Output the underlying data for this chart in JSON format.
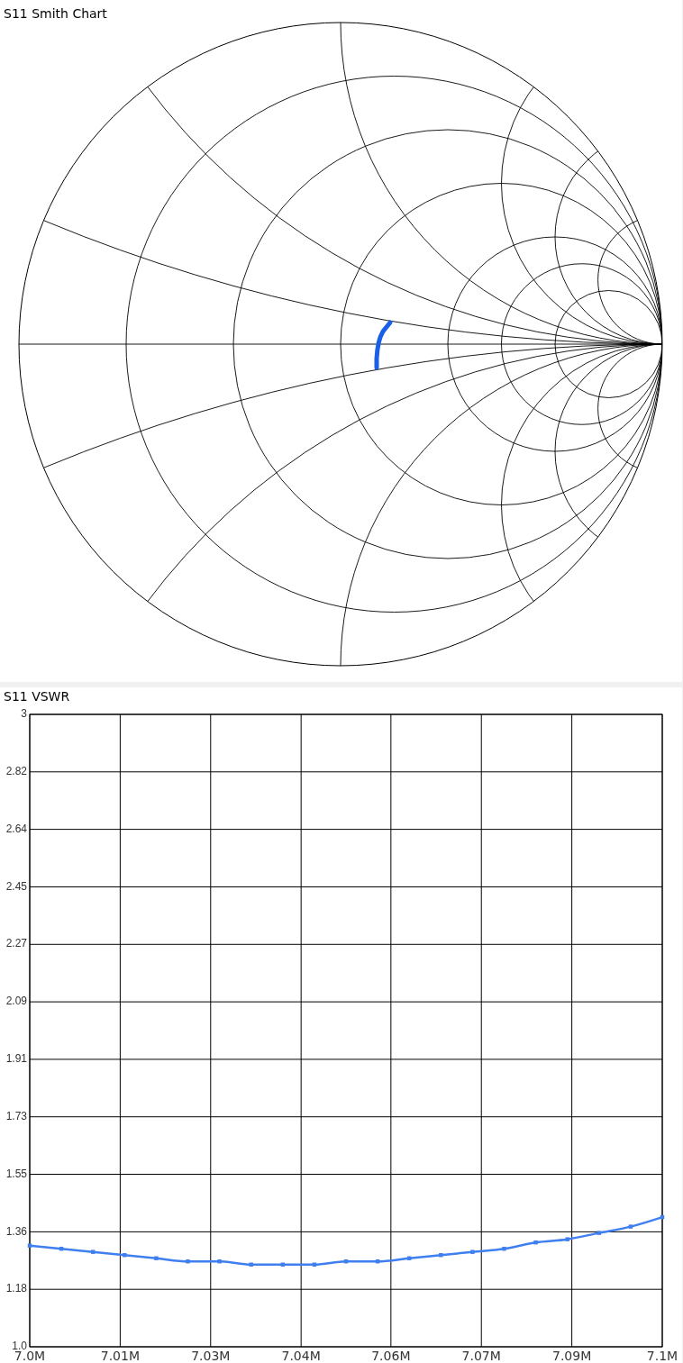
{
  "chart_data": [
    {
      "type": "other",
      "title": "S11 Smith Chart"
    },
    {
      "type": "line",
      "title": "S11 VSWR",
      "x": [
        7.0,
        7.005,
        7.01,
        7.015,
        7.02,
        7.025,
        7.03,
        7.035,
        7.04,
        7.045,
        7.05,
        7.055,
        7.06,
        7.065,
        7.07,
        7.075,
        7.08,
        7.085,
        7.09,
        7.095,
        7.1
      ],
      "series": [
        {
          "color": "#3f7fef",
          "values": [
            1.32,
            1.31,
            1.3,
            1.29,
            1.28,
            1.27,
            1.27,
            1.26,
            1.26,
            1.26,
            1.27,
            1.27,
            1.28,
            1.29,
            1.3,
            1.31,
            1.33,
            1.34,
            1.36,
            1.38,
            1.41
          ]
        }
      ],
      "xlim": [
        7.0,
        7.1
      ],
      "xticks": [
        {
          "value": 7.0,
          "label": "7.0M"
        },
        {
          "value": 7.0143,
          "label": "7.01M"
        },
        {
          "value": 7.0286,
          "label": "7.03M"
        },
        {
          "value": 7.0429,
          "label": "7.04M"
        },
        {
          "value": 7.0571,
          "label": "7.06M"
        },
        {
          "value": 7.0714,
          "label": "7.07M"
        },
        {
          "value": 7.0857,
          "label": "7.09M"
        },
        {
          "value": 7.1,
          "label": "7.1M"
        }
      ],
      "ylim": [
        1.0,
        3
      ],
      "yticks": [
        {
          "value": 1.0,
          "label": "1.0"
        },
        {
          "value": 1.1818,
          "label": "1.18"
        },
        {
          "value": 1.3636,
          "label": "1.36"
        },
        {
          "value": 1.5455,
          "label": "1.55"
        },
        {
          "value": 1.7273,
          "label": "1.73"
        },
        {
          "value": 1.9091,
          "label": "1.91"
        },
        {
          "value": 2.0909,
          "label": "2.09"
        },
        {
          "value": 2.2727,
          "label": "2.27"
        },
        {
          "value": 2.4545,
          "label": "2.45"
        },
        {
          "value": 2.6364,
          "label": "2.64"
        },
        {
          "value": 2.8182,
          "label": "2.82"
        },
        {
          "value": 3,
          "label": "3"
        }
      ],
      "grid": true,
      "marker": "square"
    }
  ]
}
